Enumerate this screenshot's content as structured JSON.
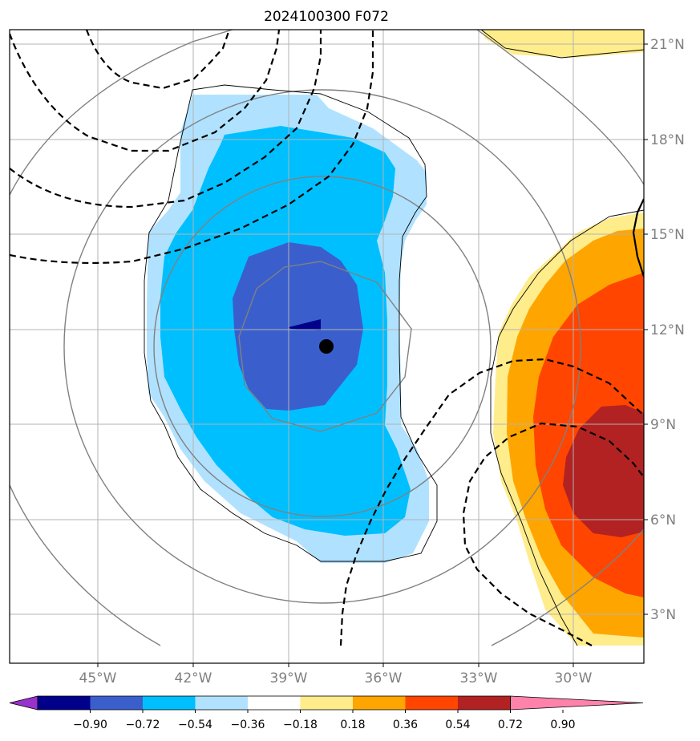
{
  "title": "2024100300 F072",
  "map": {
    "lat_labels": [
      "21°N",
      "18°N",
      "15°N",
      "12°N",
      "9°N",
      "6°N",
      "3°N"
    ],
    "lon_labels": [
      "45°W",
      "42°W",
      "39°W",
      "36°W",
      "33°W",
      "30°W"
    ]
  },
  "colorbar": {
    "labels": [
      "−0.90",
      "−0.72",
      "−0.54",
      "−0.36",
      "−0.18",
      "0.18",
      "0.36",
      "0.54",
      "0.72",
      "0.90"
    ],
    "colors": [
      "#9932cc",
      "#00008b",
      "#3a5fcd",
      "#00bfff",
      "#b0e2ff",
      "#ffffff",
      "#ffec8b",
      "#ffa500",
      "#ff4500",
      "#b22222",
      "#ff82ab"
    ]
  },
  "chart_data": {
    "type": "map",
    "projection": "lat-lon",
    "xlim": [
      "47.8°W",
      "27.8°W"
    ],
    "ylim": [
      "1.6°N",
      "21.4°N"
    ],
    "grid": true,
    "storm_center": {
      "lon": "37.8°W",
      "lat": "11.4°N"
    },
    "shading_levels": [
      -0.9,
      -0.72,
      -0.54,
      -0.36,
      -0.18,
      0.18,
      0.36,
      0.54,
      0.72,
      0.9
    ]
  }
}
